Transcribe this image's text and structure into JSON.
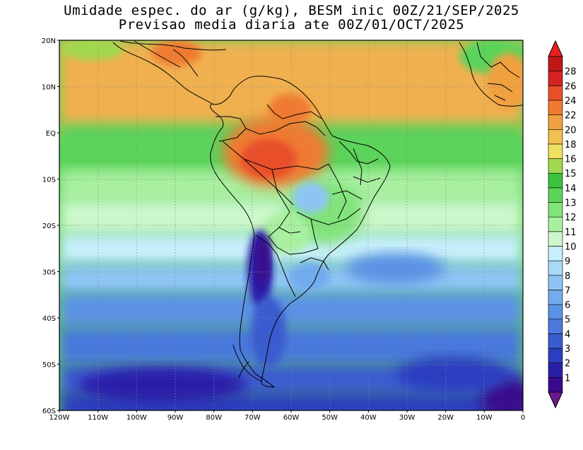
{
  "title_line1": "Umidade espec. do ar (g/kg), BESM inic 00Z/21/SEP/2025",
  "title_line2": "Previsao media diaria ate 00Z/01/OCT/2025",
  "map": {
    "lon_range": [
      -120,
      0
    ],
    "lat_range": [
      -60,
      20
    ],
    "lat_labels": [
      "20N",
      "10N",
      "EQ",
      "10S",
      "20S",
      "30S",
      "40S",
      "50S",
      "60S"
    ],
    "lon_labels": [
      "120W",
      "110W",
      "100W",
      "90W",
      "80W",
      "70W",
      "60W",
      "50W",
      "40W",
      "30W",
      "20W",
      "10W",
      "0"
    ],
    "gridlines": "dotted"
  },
  "colorbar": {
    "labels": [
      "1",
      "2",
      "3",
      "4",
      "5",
      "6",
      "7",
      "8",
      "9",
      "10",
      "11",
      "12",
      "13",
      "14",
      "15",
      "16",
      "18",
      "20",
      "22",
      "24",
      "26",
      "28"
    ],
    "colors": [
      "#3a0a8c",
      "#2a1fa8",
      "#2c3ec0",
      "#3a5ccf",
      "#4a78dc",
      "#5b92e6",
      "#72abee",
      "#8dc4f4",
      "#aad9f8",
      "#c6eefc",
      "#ccf8cc",
      "#a8f0a0",
      "#82e37a",
      "#5cd35a",
      "#3cc23c",
      "#a0d850",
      "#f0e060",
      "#f0c050",
      "#f0a040",
      "#f07a30",
      "#e8502a",
      "#d42222",
      "#c01818"
    ],
    "arrow_colors": [
      "#6b1a8c",
      "#e82020"
    ]
  }
}
